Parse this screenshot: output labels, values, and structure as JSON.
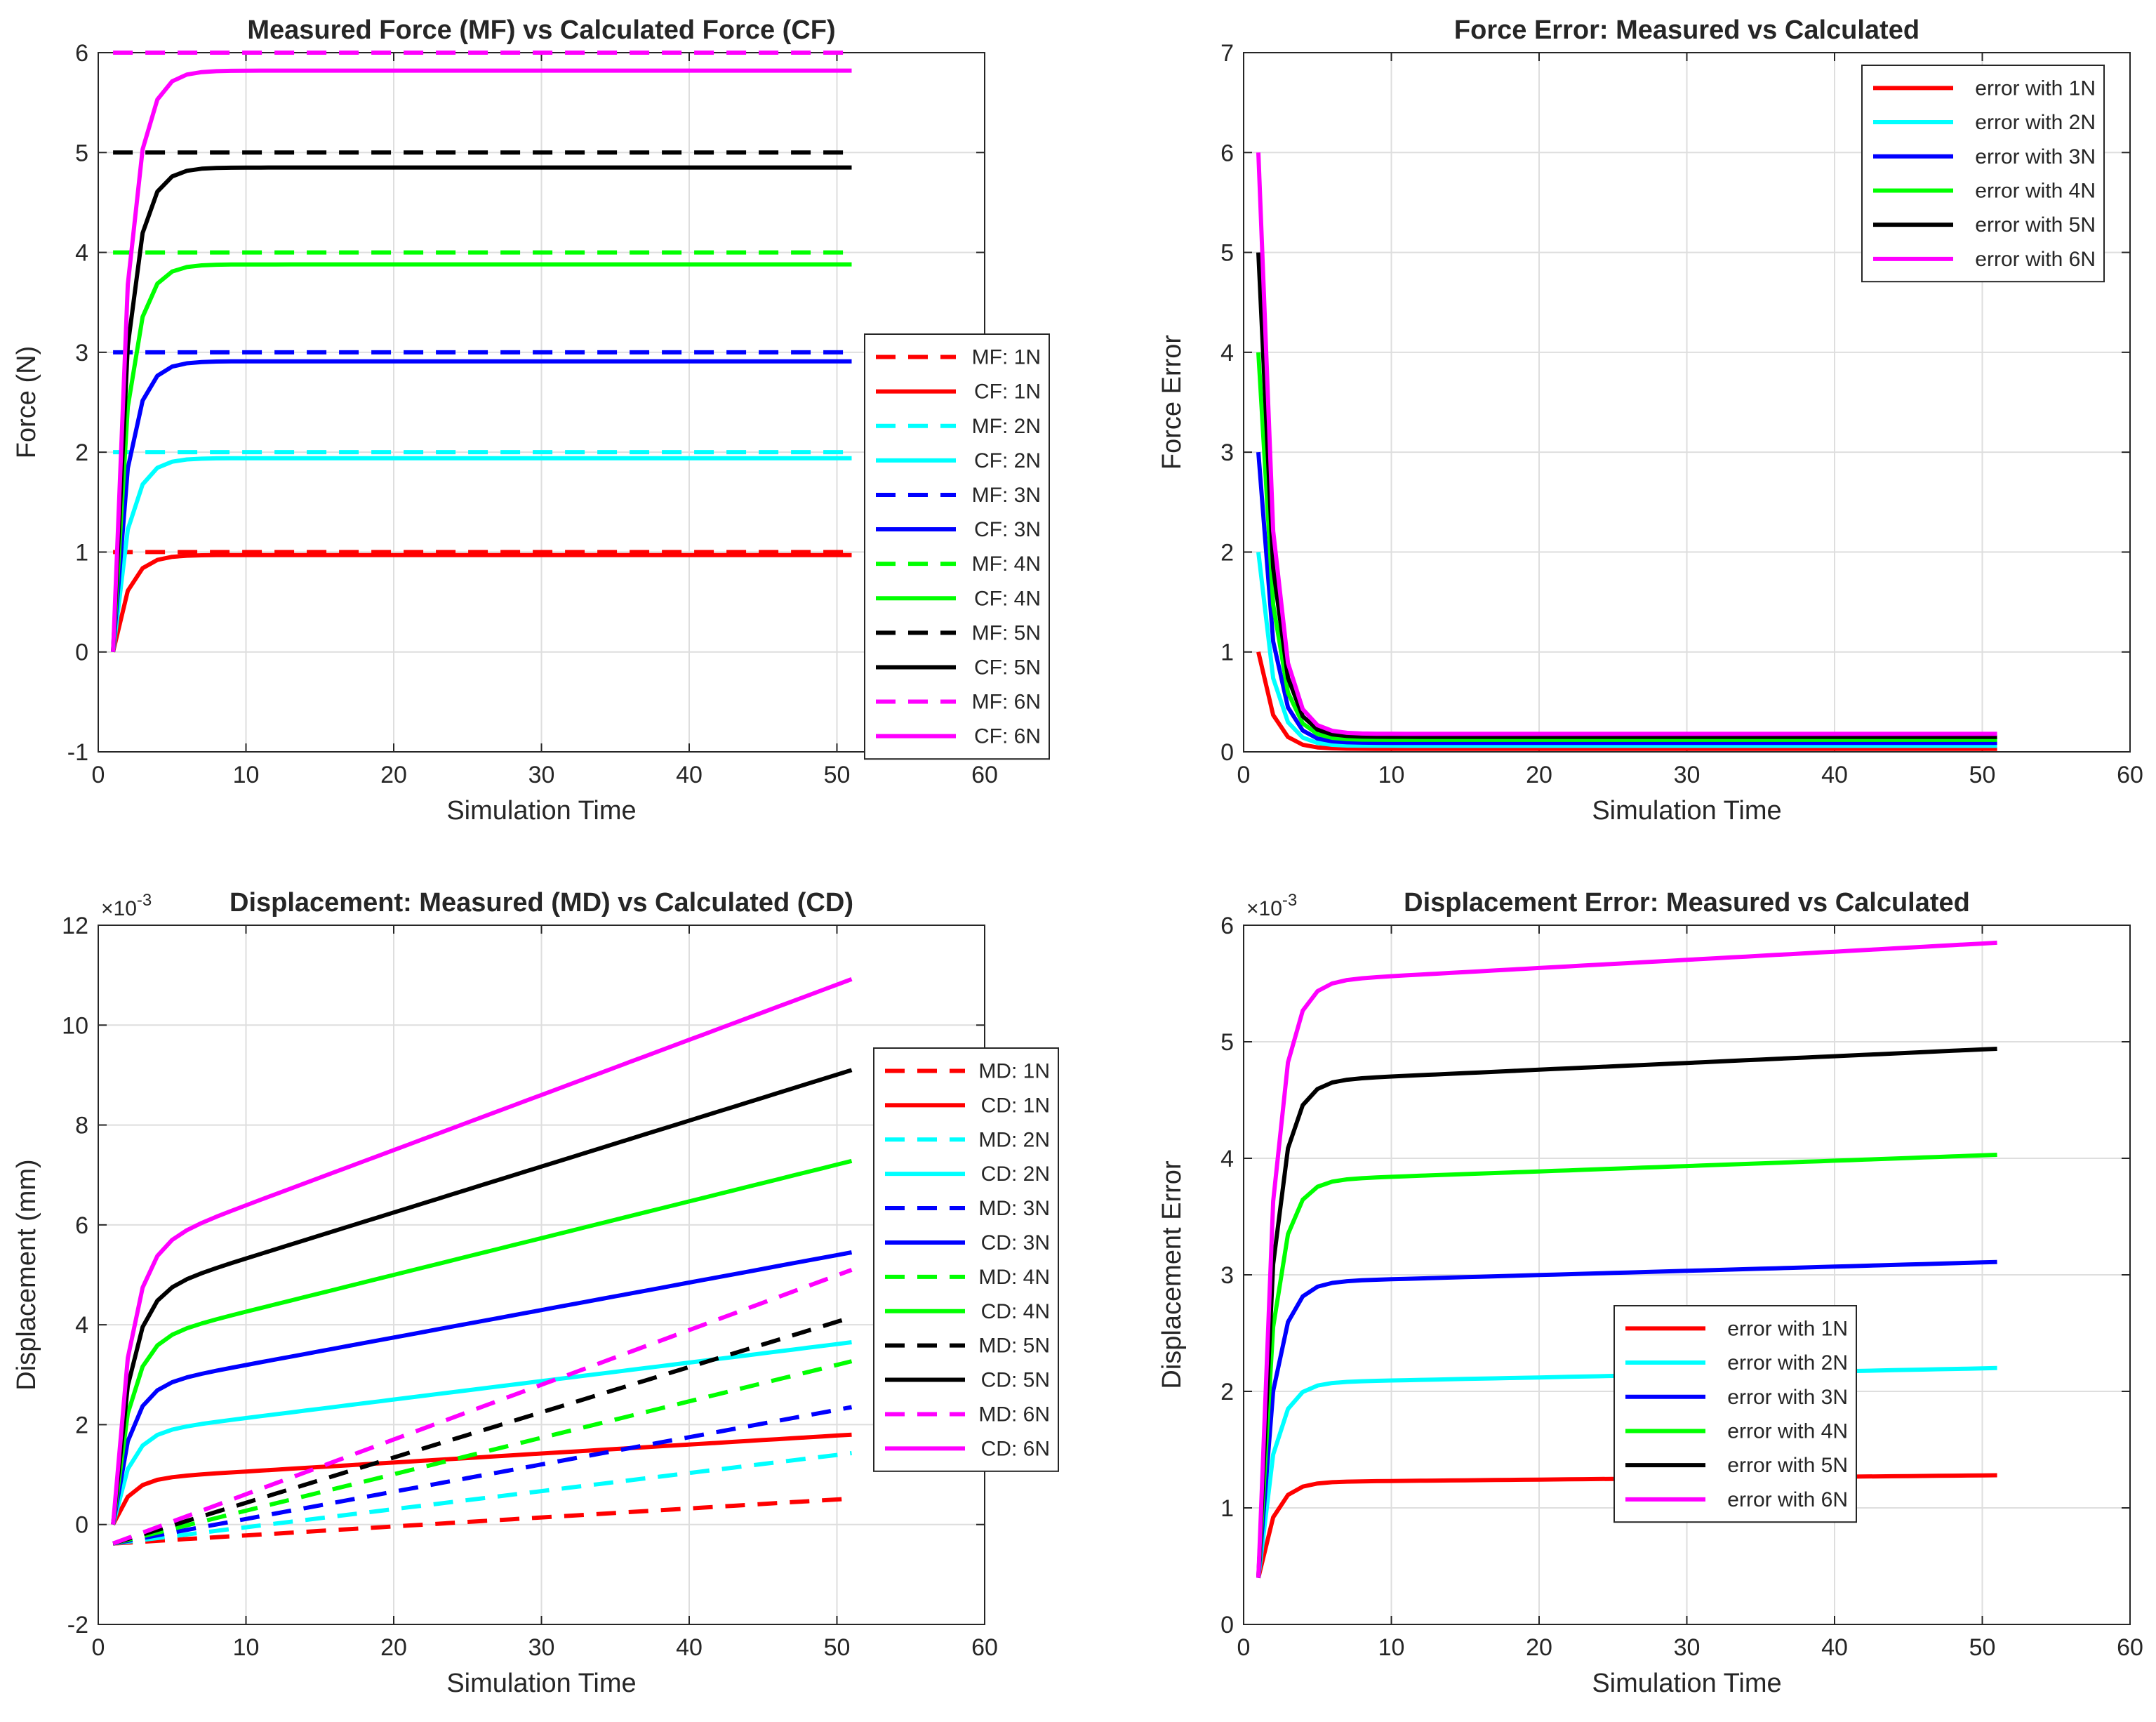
{
  "chart_data": [
    {
      "type": "line",
      "title": "Measured Force (MF) vs Calculated Force (CF)",
      "xlabel": "Simulation Time",
      "ylabel": "Force (N)",
      "xlim": [
        0,
        60
      ],
      "ylim": [
        -1,
        6
      ],
      "xticks": [
        0,
        10,
        20,
        30,
        40,
        50,
        60
      ],
      "yticks": [
        -1,
        0,
        1,
        2,
        3,
        4,
        5,
        6
      ],
      "grid": true,
      "legend_position": "east",
      "curve": "force",
      "series": [
        {
          "name": "MF: 1N",
          "kind": "const",
          "value": 1,
          "color": "#ff0000",
          "dash": true
        },
        {
          "name": "CF: 1N",
          "kind": "force",
          "level": 0.97,
          "color": "#ff0000",
          "dash": false
        },
        {
          "name": "MF: 2N",
          "kind": "const",
          "value": 2,
          "color": "#00ffff",
          "dash": true
        },
        {
          "name": "CF: 2N",
          "kind": "force",
          "level": 1.94,
          "color": "#00ffff",
          "dash": false
        },
        {
          "name": "MF: 3N",
          "kind": "const",
          "value": 3,
          "color": "#0000ff",
          "dash": true
        },
        {
          "name": "CF: 3N",
          "kind": "force",
          "level": 2.91,
          "color": "#0000ff",
          "dash": false
        },
        {
          "name": "MF: 4N",
          "kind": "const",
          "value": 4,
          "color": "#00ff00",
          "dash": true
        },
        {
          "name": "CF: 4N",
          "kind": "force",
          "level": 3.88,
          "color": "#00ff00",
          "dash": false
        },
        {
          "name": "MF: 5N",
          "kind": "const",
          "value": 5,
          "color": "#000000",
          "dash": true
        },
        {
          "name": "CF: 5N",
          "kind": "force",
          "level": 4.85,
          "color": "#000000",
          "dash": false
        },
        {
          "name": "MF: 6N",
          "kind": "const",
          "value": 6,
          "color": "#ff00ff",
          "dash": true
        },
        {
          "name": "CF: 6N",
          "kind": "force",
          "level": 5.82,
          "color": "#ff00ff",
          "dash": false
        }
      ]
    },
    {
      "type": "line",
      "title": "Force Error: Measured vs Calculated",
      "xlabel": "Simulation Time",
      "ylabel": "Force Error",
      "xlim": [
        0,
        60
      ],
      "ylim": [
        0,
        7
      ],
      "xticks": [
        0,
        10,
        20,
        30,
        40,
        50,
        60
      ],
      "yticks": [
        0,
        1,
        2,
        3,
        4,
        5,
        6,
        7
      ],
      "grid": true,
      "legend_position": "top-right",
      "series": [
        {
          "name": "error with 1N",
          "kind": "ferr",
          "start": 1,
          "final": 0.03,
          "color": "#ff0000",
          "dash": false
        },
        {
          "name": "error with 2N",
          "kind": "ferr",
          "start": 2,
          "final": 0.06,
          "color": "#00ffff",
          "dash": false
        },
        {
          "name": "error with 3N",
          "kind": "ferr",
          "start": 3,
          "final": 0.09,
          "color": "#0000ff",
          "dash": false
        },
        {
          "name": "error with 4N",
          "kind": "ferr",
          "start": 4,
          "final": 0.12,
          "color": "#00ff00",
          "dash": false
        },
        {
          "name": "error with 5N",
          "kind": "ferr",
          "start": 5,
          "final": 0.15,
          "color": "#000000",
          "dash": false
        },
        {
          "name": "error with 6N",
          "kind": "ferr",
          "start": 6,
          "final": 0.18,
          "color": "#ff00ff",
          "dash": false
        }
      ]
    },
    {
      "type": "line",
      "title": "Displacement: Measured (MD) vs Calculated (CD)",
      "xlabel": "Simulation Time",
      "ylabel": "Displacement (mm)",
      "y_multiplier": "×10",
      "y_exponent": "-3",
      "xlim": [
        0,
        60
      ],
      "ylim": [
        -2,
        12
      ],
      "xticks": [
        0,
        10,
        20,
        30,
        40,
        50,
        60
      ],
      "yticks": [
        -2,
        0,
        2,
        4,
        6,
        8,
        10,
        12
      ],
      "grid": true,
      "legend_position": "east",
      "series": [
        {
          "name": "MD: 1N",
          "kind": "linear",
          "y0": -0.38,
          "y1": 0.52,
          "color": "#ff0000",
          "dash": true
        },
        {
          "name": "CD: 1N",
          "kind": "disp",
          "rise": 0.9,
          "y1": 1.8,
          "color": "#ff0000",
          "dash": false
        },
        {
          "name": "MD: 2N",
          "kind": "linear",
          "y0": -0.38,
          "y1": 1.43,
          "color": "#00ffff",
          "dash": true
        },
        {
          "name": "CD: 2N",
          "kind": "disp",
          "rise": 1.8,
          "y1": 3.65,
          "color": "#00ffff",
          "dash": false
        },
        {
          "name": "MD: 3N",
          "kind": "linear",
          "y0": -0.38,
          "y1": 2.35,
          "color": "#0000ff",
          "dash": true
        },
        {
          "name": "CD: 3N",
          "kind": "disp",
          "rise": 2.7,
          "y1": 5.45,
          "color": "#0000ff",
          "dash": false
        },
        {
          "name": "MD: 4N",
          "kind": "linear",
          "y0": -0.38,
          "y1": 3.27,
          "color": "#00ff00",
          "dash": true
        },
        {
          "name": "CD: 4N",
          "kind": "disp",
          "rise": 3.6,
          "y1": 7.28,
          "color": "#00ff00",
          "dash": false
        },
        {
          "name": "MD: 5N",
          "kind": "linear",
          "y0": -0.38,
          "y1": 4.15,
          "color": "#000000",
          "dash": true
        },
        {
          "name": "CD: 5N",
          "kind": "disp",
          "rise": 4.5,
          "y1": 9.1,
          "color": "#000000",
          "dash": false
        },
        {
          "name": "MD: 6N",
          "kind": "linear",
          "y0": -0.38,
          "y1": 5.1,
          "color": "#ff00ff",
          "dash": true
        },
        {
          "name": "CD: 6N",
          "kind": "disp",
          "rise": 5.4,
          "y1": 10.92,
          "color": "#ff00ff",
          "dash": false
        }
      ]
    },
    {
      "type": "line",
      "title": "Displacement Error: Measured vs Calculated",
      "xlabel": "Simulation Time",
      "ylabel": "Displacement Error",
      "y_multiplier": "×10",
      "y_exponent": "-3",
      "xlim": [
        0,
        60
      ],
      "ylim": [
        0,
        6
      ],
      "xticks": [
        0,
        10,
        20,
        30,
        40,
        50,
        60
      ],
      "yticks": [
        0,
        1,
        2,
        3,
        4,
        5,
        6
      ],
      "grid": true,
      "legend_position": "bottom-center",
      "series": [
        {
          "name": "error with 1N",
          "kind": "derr",
          "level": 1.22,
          "y1": 1.28,
          "color": "#ff0000",
          "dash": false
        },
        {
          "name": "error with 2N",
          "kind": "derr",
          "level": 2.07,
          "y1": 2.2,
          "color": "#00ffff",
          "dash": false
        },
        {
          "name": "error with 3N",
          "kind": "derr",
          "level": 2.93,
          "y1": 3.11,
          "color": "#0000ff",
          "dash": false
        },
        {
          "name": "error with 4N",
          "kind": "derr",
          "level": 3.8,
          "y1": 4.03,
          "color": "#00ff00",
          "dash": false
        },
        {
          "name": "error with 5N",
          "kind": "derr",
          "level": 4.65,
          "y1": 4.94,
          "color": "#000000",
          "dash": false
        },
        {
          "name": "error with 6N",
          "kind": "derr",
          "level": 5.5,
          "y1": 5.85,
          "color": "#ff00ff",
          "dash": false
        }
      ]
    }
  ]
}
